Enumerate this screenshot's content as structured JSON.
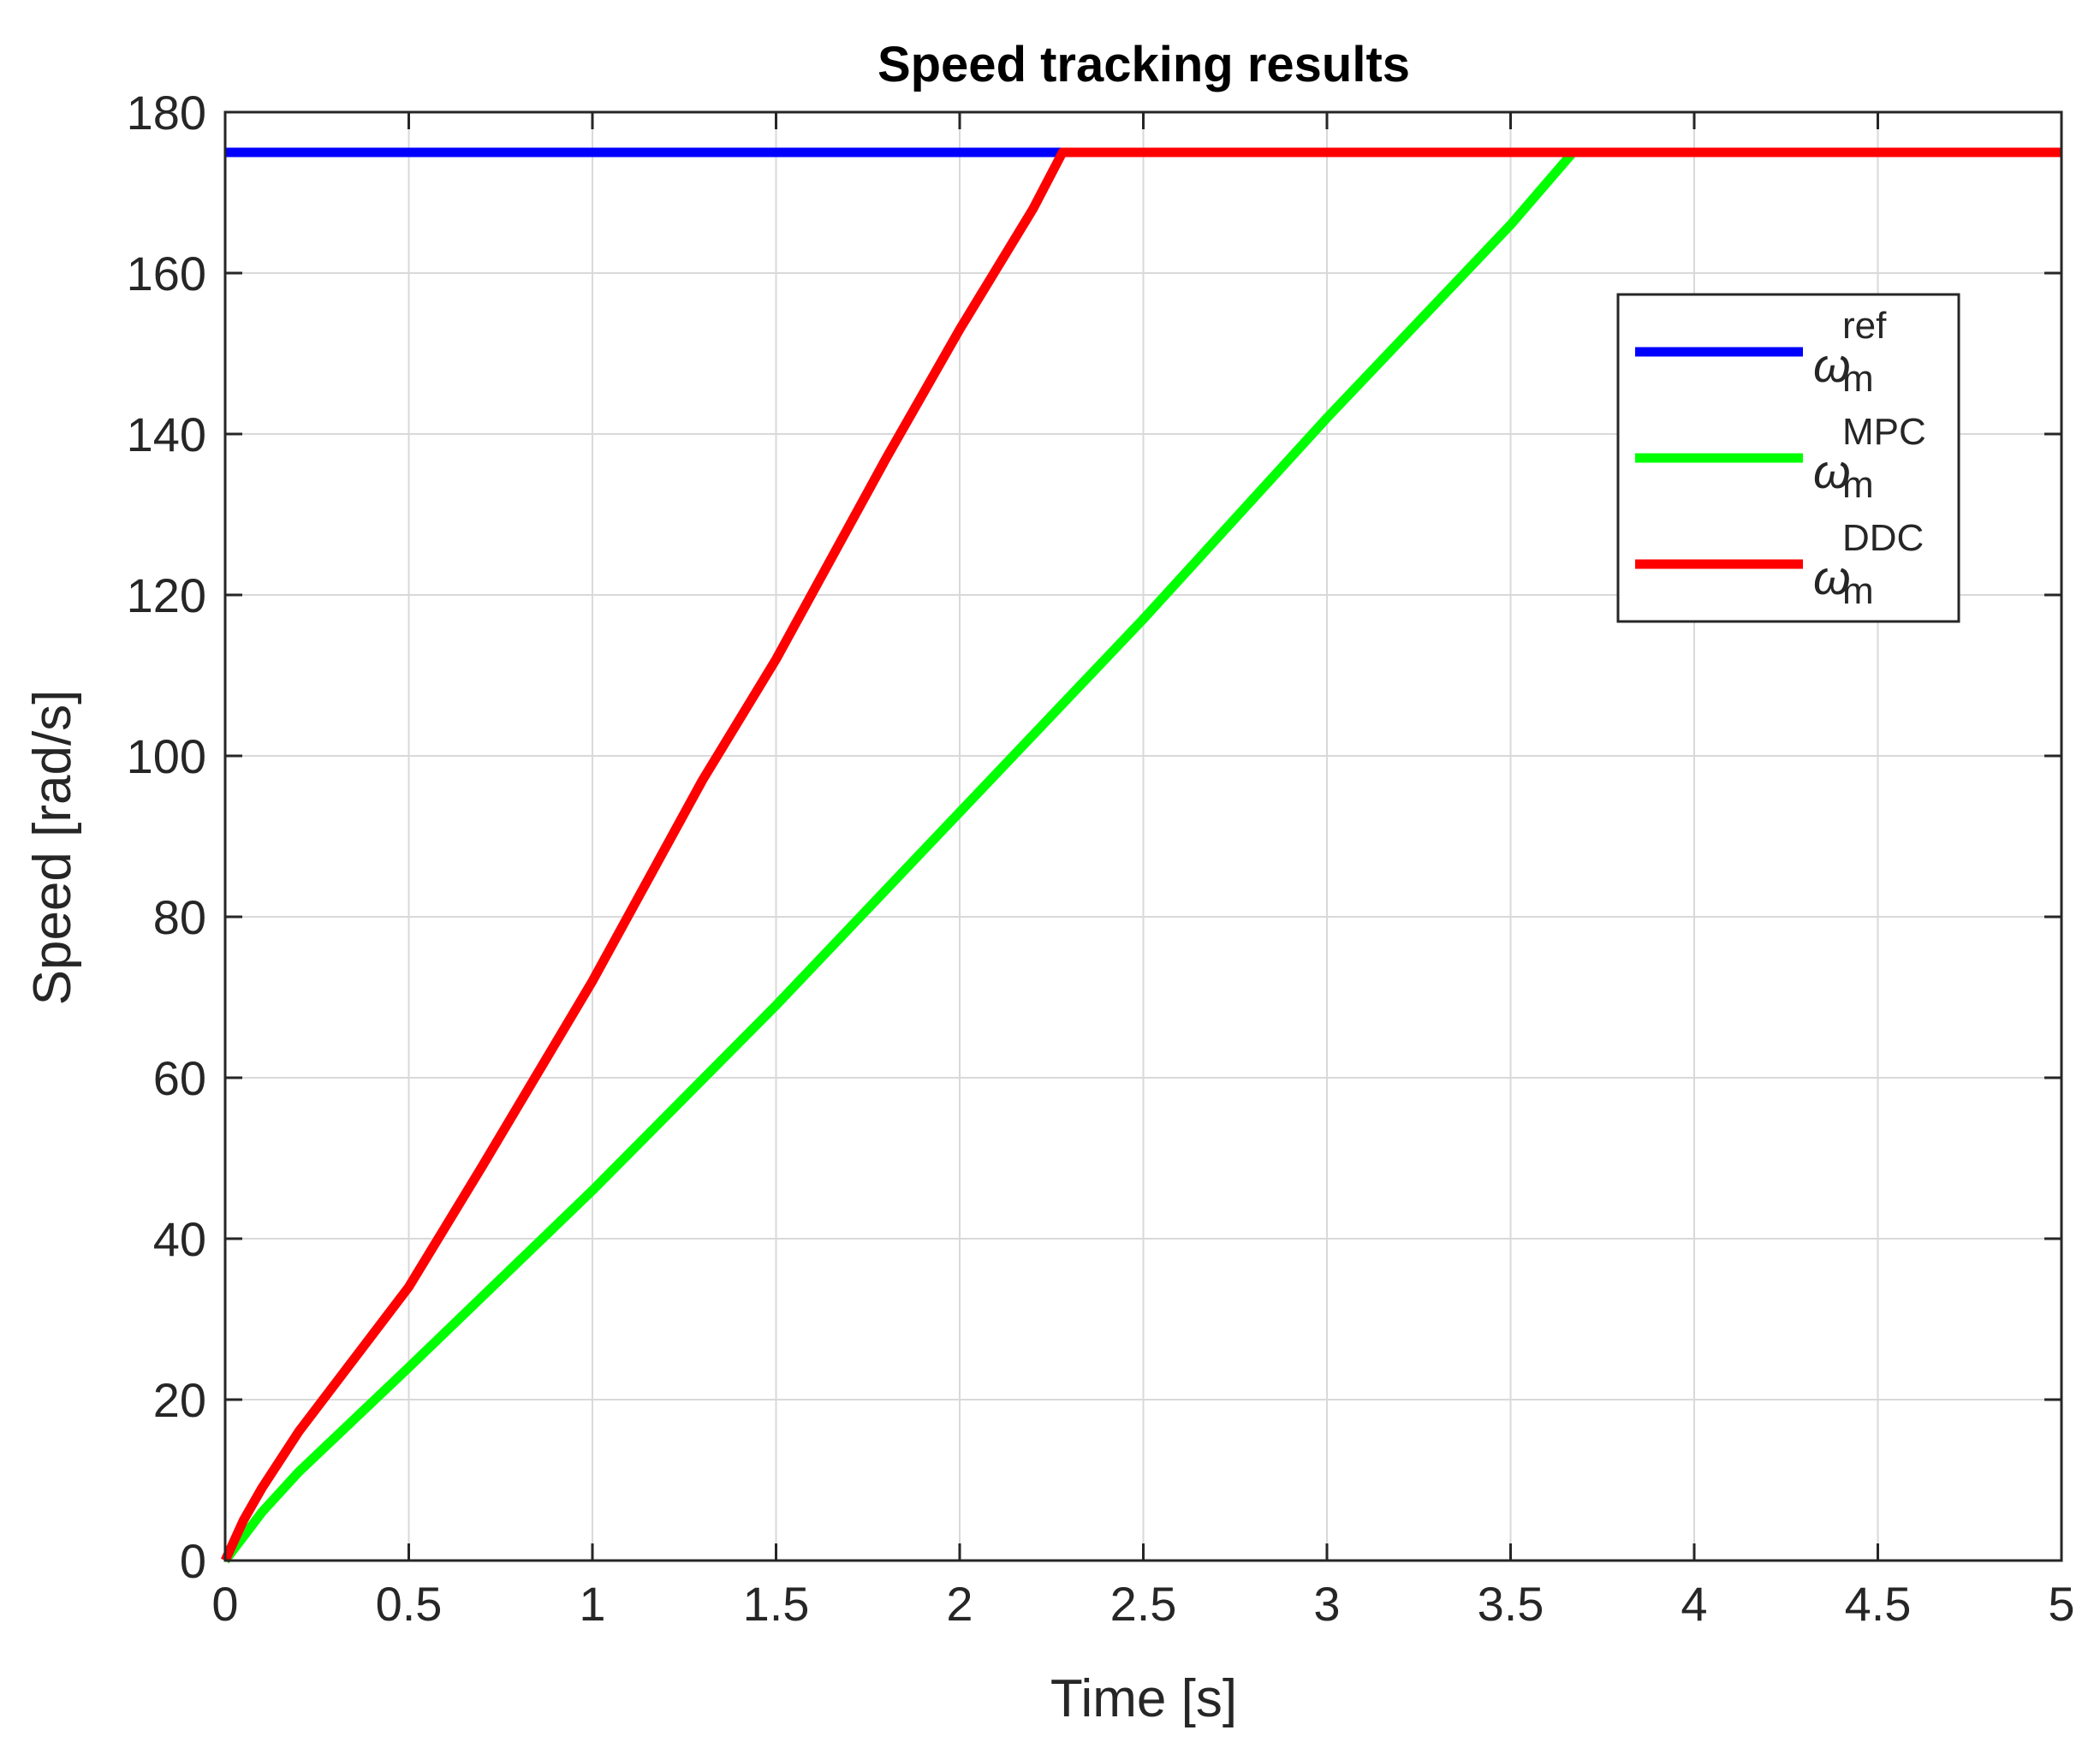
{
  "chart_data": {
    "type": "line",
    "title": "Speed tracking results",
    "xlabel": "Time [s]",
    "ylabel": "Speed [rad/s]",
    "xlim": [
      0,
      5
    ],
    "ylim": [
      0,
      180
    ],
    "xticks": [
      0,
      0.5,
      1,
      1.5,
      2,
      2.5,
      3,
      3.5,
      4,
      4.5,
      5
    ],
    "xtick_labels": [
      "0",
      "0.5",
      "1",
      "1.5",
      "2",
      "2.5",
      "3",
      "3.5",
      "4",
      "4.5",
      "5"
    ],
    "yticks": [
      0,
      20,
      40,
      60,
      80,
      100,
      120,
      140,
      160,
      180
    ],
    "ytick_labels": [
      "0",
      "20",
      "40",
      "60",
      "80",
      "100",
      "120",
      "140",
      "160",
      "180"
    ],
    "grid": true,
    "legend_position": "upper-right",
    "series": [
      {
        "name": "ω_m^ref",
        "legend_symbol": "ω",
        "legend_sub": "m",
        "legend_sup": "ref",
        "color": "#0000ff",
        "x": [
          0,
          5
        ],
        "y": [
          175,
          175
        ]
      },
      {
        "name": "ω_m^MPC",
        "legend_symbol": "ω",
        "legend_sub": "m",
        "legend_sup": "MPC",
        "color": "#00ff00",
        "x": [
          0,
          0.1,
          0.2,
          0.5,
          1.0,
          1.5,
          2.0,
          2.5,
          3.0,
          3.5,
          3.67,
          5
        ],
        "y": [
          0,
          6,
          11,
          24,
          46,
          69,
          93,
          117,
          142,
          166,
          175,
          175
        ]
      },
      {
        "name": "ω_m^DDC",
        "legend_symbol": "ω",
        "legend_sub": "m",
        "legend_sup": "DDC",
        "color": "#ff0000",
        "x": [
          0,
          0.05,
          0.1,
          0.2,
          0.3,
          0.5,
          0.7,
          1.0,
          1.3,
          1.5,
          1.8,
          2.0,
          2.2,
          2.28,
          5
        ],
        "y": [
          0,
          5,
          9,
          16,
          22,
          34,
          49,
          72,
          97,
          112,
          137,
          153,
          168,
          175,
          175
        ]
      }
    ]
  }
}
